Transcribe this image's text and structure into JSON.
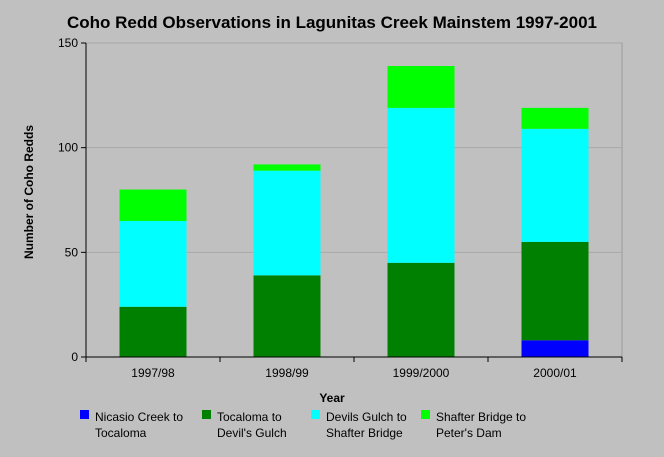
{
  "chart_data": {
    "type": "bar",
    "stacked": true,
    "title": "Coho Redd Observations in Lagunitas Creek Mainstem 1997-2001",
    "xlabel": "Year",
    "ylabel": "Number of Coho Redds",
    "ylim": [
      0,
      150
    ],
    "yticks": [
      0,
      50,
      100,
      150
    ],
    "grid": true,
    "legend_position": "bottom",
    "categories": [
      "1997/98",
      "1998/99",
      "1999/2000",
      "2000/01"
    ],
    "series": [
      {
        "name": "Nicasio Creek to Tocaloma",
        "label_lines": [
          "Nicasio Creek to",
          "Tocaloma"
        ],
        "color": "#0000ff",
        "values": [
          0,
          0,
          0,
          8
        ]
      },
      {
        "name": "Tocaloma to Devil's Gulch",
        "label_lines": [
          "Tocaloma to",
          "Devil's Gulch"
        ],
        "color": "#008000",
        "values": [
          24,
          39,
          45,
          47
        ]
      },
      {
        "name": "Devils Gulch to Shafter Bridge",
        "label_lines": [
          "Devils Gulch to",
          "Shafter Bridge"
        ],
        "color": "#00ffff",
        "values": [
          41,
          50,
          74,
          54
        ]
      },
      {
        "name": "Shafter Bridge to Peter's Dam",
        "label_lines": [
          "Shafter Bridge to",
          "Peter's Dam"
        ],
        "color": "#00ff00",
        "values": [
          15,
          3,
          20,
          10
        ]
      }
    ]
  }
}
